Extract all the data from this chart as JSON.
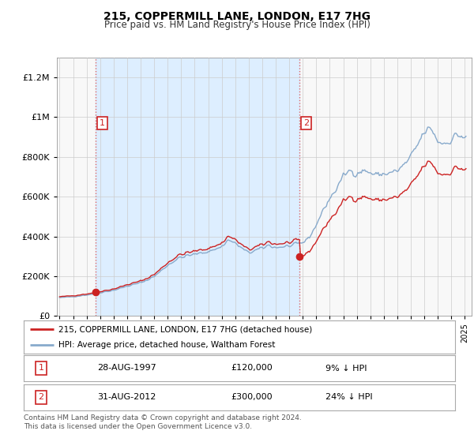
{
  "title": "215, COPPERMILL LANE, LONDON, E17 7HG",
  "subtitle": "Price paid vs. HM Land Registry's House Price Index (HPI)",
  "ylabel_ticks": [
    "£0",
    "£200K",
    "£400K",
    "£600K",
    "£800K",
    "£1M",
    "£1.2M"
  ],
  "ytick_values": [
    0,
    200000,
    400000,
    600000,
    800000,
    1000000,
    1200000
  ],
  "ylim": [
    0,
    1300000
  ],
  "xlim_start": 1994.8,
  "xlim_end": 2025.5,
  "purchase1_date": 1997.66,
  "purchase1_price": 120000,
  "purchase2_date": 2012.75,
  "purchase2_price": 300000,
  "legend_line1": "215, COPPERMILL LANE, LONDON, E17 7HG (detached house)",
  "legend_line2": "HPI: Average price, detached house, Waltham Forest",
  "table_row1": [
    "1",
    "28-AUG-1997",
    "£120,000",
    "9% ↓ HPI"
  ],
  "table_row2": [
    "2",
    "31-AUG-2012",
    "£300,000",
    "24% ↓ HPI"
  ],
  "footnote1": "Contains HM Land Registry data © Crown copyright and database right 2024.",
  "footnote2": "This data is licensed under the Open Government Licence v3.0.",
  "red_color": "#cc2222",
  "blue_color": "#88aacc",
  "shade_color": "#ddeeff",
  "background_chart": "#f8f8f8",
  "background_fig": "#ffffff",
  "grid_color": "#cccccc",
  "vline_color": "#dd6666"
}
